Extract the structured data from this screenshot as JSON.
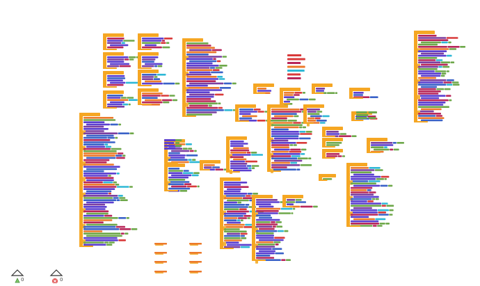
{
  "workspace": {
    "background": "#ffffff",
    "block_colors": {
      "event": "#f5a623",
      "procedure": "#7b3fa0",
      "component": "#5b3fd0",
      "text": "#b8265a",
      "math": "#3a62c8",
      "logic": "#6ea84a",
      "variable": "#ec7a2b",
      "control": "#f3b33d",
      "cyan": "#2eb8d6",
      "red": "#d93a3a"
    }
  },
  "indicators": {
    "warnings": {
      "icon": "warning-triangle-icon",
      "count": "0"
    },
    "errors": {
      "icon": "error-x-icon",
      "count": "0"
    }
  }
}
